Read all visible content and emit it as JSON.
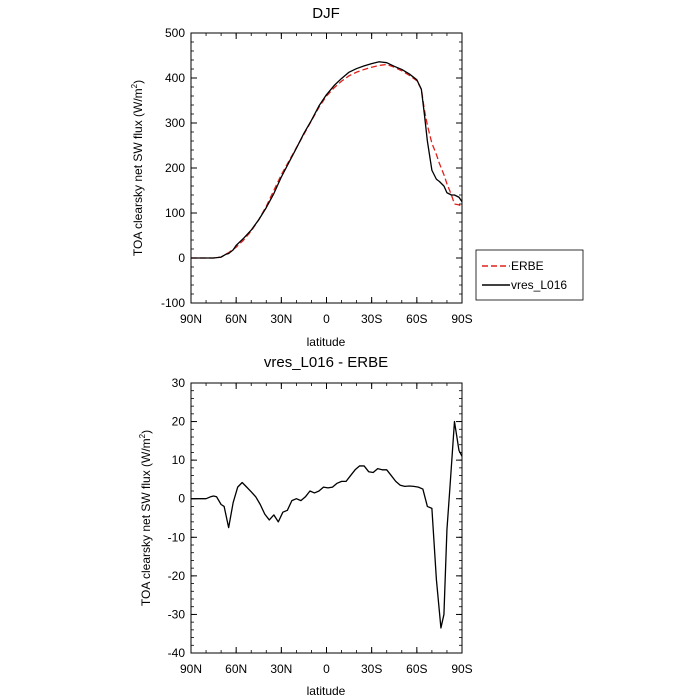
{
  "chart_data": [
    {
      "type": "line",
      "title": "DJF",
      "xlabel": "latitude",
      "ylabel": "TOA clearsky net SW flux (W/m",
      "ylabel_sup": "2",
      "ylabel_close": ")",
      "xlim": [
        -90,
        90
      ],
      "ylim": [
        -100,
        500
      ],
      "xticks": [
        {
          "value": -90,
          "label": "90N"
        },
        {
          "value": -60,
          "label": "60N"
        },
        {
          "value": -30,
          "label": "30N"
        },
        {
          "value": 0,
          "label": "0"
        },
        {
          "value": 30,
          "label": "30S"
        },
        {
          "value": 60,
          "label": "60S"
        },
        {
          "value": 90,
          "label": "90S"
        }
      ],
      "yticks": [
        -100,
        0,
        100,
        200,
        300,
        400,
        500
      ],
      "legend": {
        "position": "right"
      },
      "series": [
        {
          "name": "ERBE",
          "color": "#e0201b",
          "dash": "dashed",
          "x": [
            -90,
            -80,
            -75,
            -70,
            -65,
            -60,
            -55,
            -50,
            -45,
            -40,
            -35,
            -30,
            -25,
            -20,
            -15,
            -10,
            -5,
            0,
            5,
            10,
            15,
            20,
            25,
            30,
            35,
            40,
            45,
            50,
            55,
            60,
            63,
            65,
            67,
            70,
            73,
            75,
            78,
            80,
            83,
            85,
            88,
            90
          ],
          "y": [
            0,
            0,
            0,
            2,
            12,
            24,
            40,
            60,
            85,
            115,
            150,
            185,
            215,
            245,
            275,
            305,
            335,
            360,
            378,
            393,
            405,
            413,
            419,
            424,
            428,
            430,
            424,
            416,
            406,
            394,
            375,
            330,
            295,
            255,
            230,
            210,
            185,
            165,
            140,
            120,
            118,
            115
          ]
        },
        {
          "name": "vres_L016",
          "color": "#000000",
          "dash": "solid",
          "x": [
            -90,
            -80,
            -75,
            -70,
            -67,
            -65,
            -62,
            -60,
            -55,
            -50,
            -45,
            -40,
            -35,
            -30,
            -25,
            -20,
            -15,
            -10,
            -5,
            0,
            5,
            10,
            15,
            20,
            25,
            30,
            35,
            40,
            45,
            50,
            55,
            60,
            63,
            65,
            67,
            70,
            73,
            75,
            78,
            80,
            83,
            85,
            88,
            90
          ],
          "y": [
            0,
            0,
            0,
            2,
            8,
            10,
            18,
            28,
            44,
            62,
            85,
            112,
            143,
            180,
            212,
            244,
            277,
            306,
            338,
            363,
            383,
            399,
            413,
            421,
            427,
            432,
            436,
            434,
            426,
            419,
            409,
            396,
            375,
            320,
            260,
            195,
            175,
            170,
            160,
            145,
            140,
            140,
            135,
            125
          ]
        }
      ]
    },
    {
      "type": "line",
      "title": "vres_L016 - ERBE",
      "xlabel": "latitude",
      "ylabel": "TOA clearsky net SW flux (W/m",
      "ylabel_sup": "2",
      "ylabel_close": ")",
      "xlim": [
        -90,
        90
      ],
      "ylim": [
        -40,
        30
      ],
      "xticks": [
        {
          "value": -90,
          "label": "90N"
        },
        {
          "value": -60,
          "label": "60N"
        },
        {
          "value": -30,
          "label": "30N"
        },
        {
          "value": 0,
          "label": "0"
        },
        {
          "value": 30,
          "label": "30S"
        },
        {
          "value": 60,
          "label": "60S"
        },
        {
          "value": 90,
          "label": "90S"
        }
      ],
      "yticks": [
        -40,
        -30,
        -20,
        -10,
        0,
        10,
        20,
        30
      ],
      "series": [
        {
          "name": "vres_L016 - ERBE",
          "color": "#000000",
          "dash": "solid",
          "x": [
            -90,
            -85,
            -80,
            -77,
            -75,
            -73,
            -70,
            -68,
            -65,
            -62,
            -59,
            -56,
            -53,
            -50,
            -47,
            -44,
            -41,
            -38,
            -35,
            -32,
            -29,
            -26,
            -23,
            -20,
            -17,
            -14,
            -11,
            -8,
            -5,
            -2,
            1,
            4,
            7,
            10,
            13,
            16,
            19,
            22,
            25,
            28,
            31,
            34,
            37,
            40,
            43,
            46,
            49,
            52,
            55,
            58,
            61,
            64,
            67,
            70,
            73,
            76,
            78,
            80,
            82,
            85,
            88,
            90
          ],
          "y": [
            0,
            0,
            0,
            0.5,
            0.7,
            0.5,
            -1.5,
            -2,
            -7.5,
            -1,
            3,
            4.2,
            3,
            1.8,
            0.5,
            -1.5,
            -4,
            -5.5,
            -4.2,
            -6,
            -3.5,
            -3,
            -0.5,
            0,
            -0.5,
            0.5,
            2,
            1.5,
            2,
            3,
            2.8,
            3,
            4,
            4.5,
            4.5,
            6,
            7.5,
            8.5,
            8.5,
            7,
            6.8,
            7.8,
            7.5,
            7.5,
            6,
            4.5,
            3.5,
            3.2,
            3.3,
            3.2,
            3,
            2.5,
            -2,
            -2.5,
            -21,
            -33.5,
            -30,
            -8,
            3,
            20,
            12.5,
            11
          ]
        }
      ]
    }
  ]
}
